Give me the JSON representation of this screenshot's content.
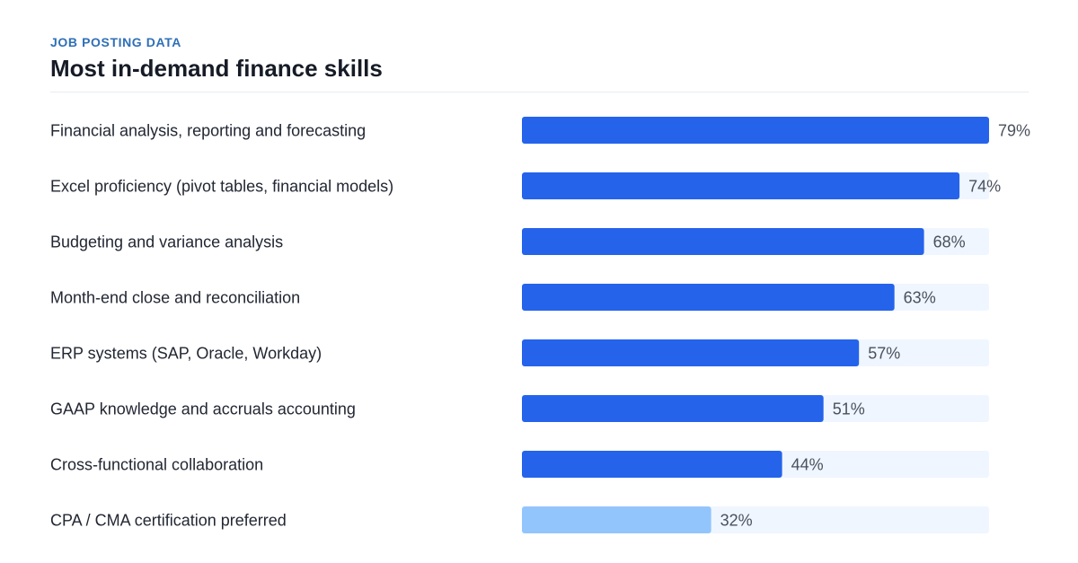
{
  "header": {
    "eyebrow": "JOB POSTING DATA",
    "title": "Most in-demand finance skills"
  },
  "colors": {
    "bar_primary": "#2563eb",
    "bar_secondary": "#93c5fd",
    "track": "#eff6ff"
  },
  "chart_data": {
    "type": "bar",
    "orientation": "horizontal",
    "value_suffix": "%",
    "xlim": [
      0,
      79
    ],
    "grid": false,
    "categories": [
      "Financial analysis, reporting and forecasting",
      "Excel proficiency (pivot tables, financial models)",
      "Budgeting and variance analysis",
      "Month-end close and reconciliation",
      "ERP systems (SAP, Oracle, Workday)",
      "GAAP knowledge and accruals accounting",
      "Cross-functional collaboration",
      "CPA / CMA certification preferred"
    ],
    "values": [
      79,
      74,
      68,
      63,
      57,
      51,
      44,
      32
    ],
    "highlight": [
      "primary",
      "primary",
      "primary",
      "primary",
      "primary",
      "primary",
      "primary",
      "secondary"
    ]
  }
}
